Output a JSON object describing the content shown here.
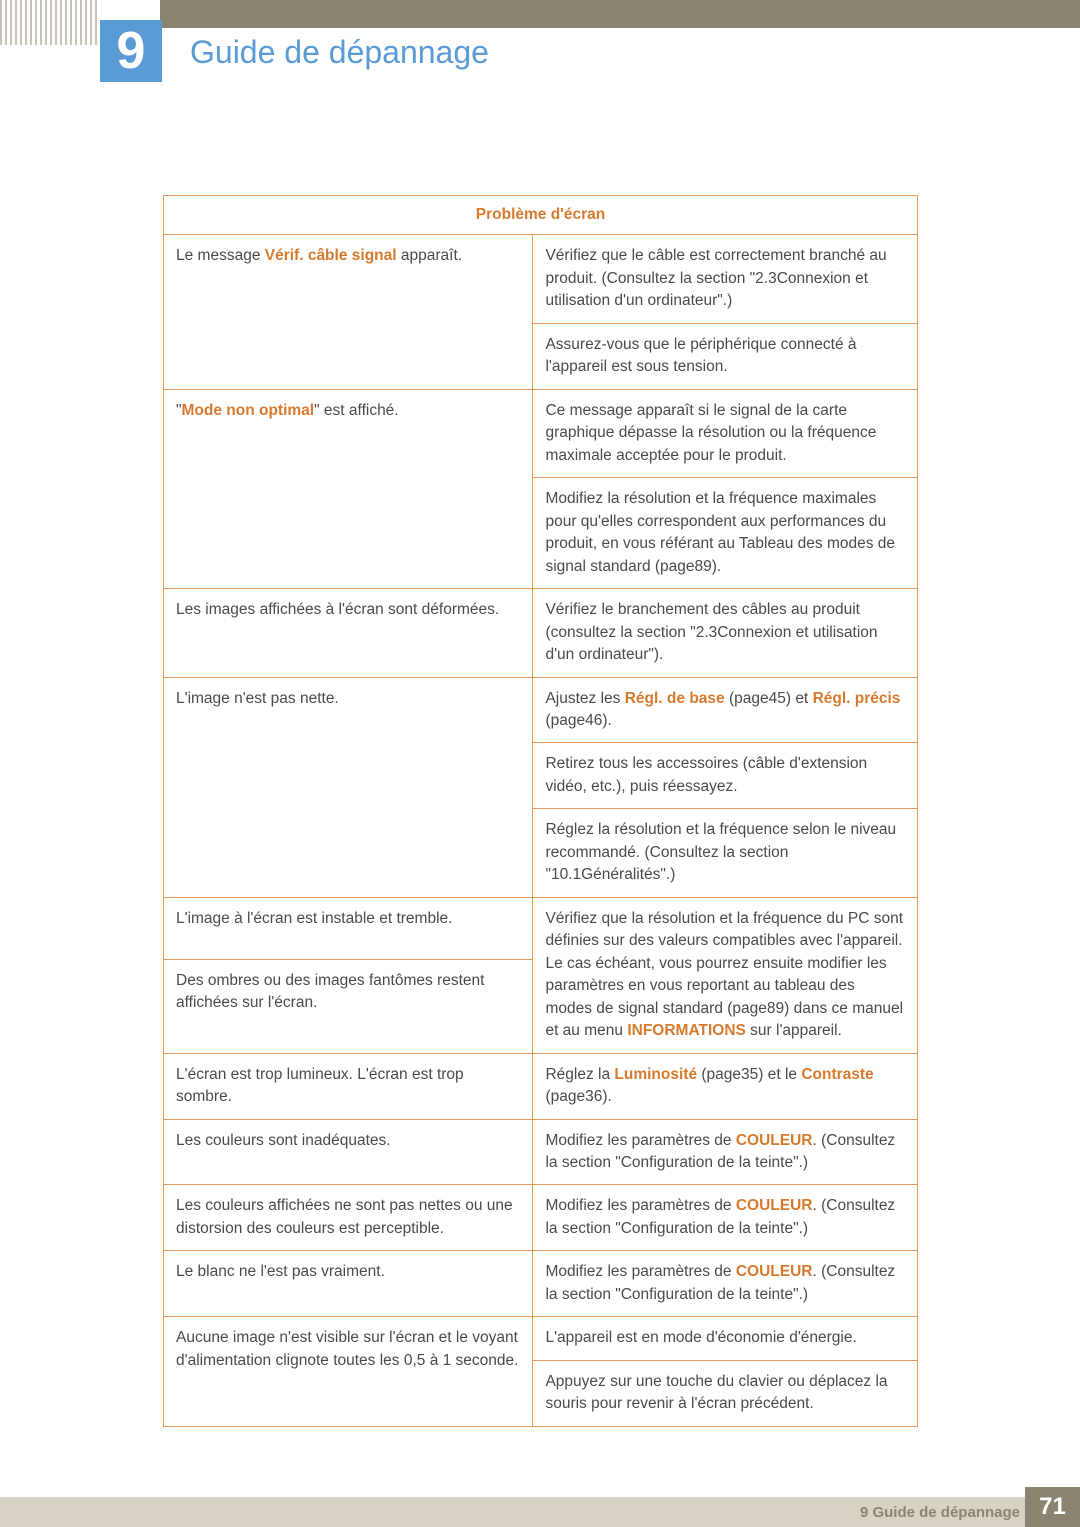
{
  "chapter": {
    "number": "9",
    "title": "Guide de dépannage"
  },
  "table": {
    "header": "Problème d'écran",
    "rows": {
      "r1_left_a": "Le message ",
      "r1_left_hl": "Vérif. câble signal",
      "r1_left_b": " apparaît.",
      "r1_right": "Vérifiez que le câble est correctement branché au produit. (Consultez la section \"2.3Connexion et utilisation d'un ordinateur\".)",
      "r2_right": "Assurez-vous que le périphérique connecté à l'appareil est sous tension.",
      "r3_left_a": "\"",
      "r3_left_hl": "Mode non optimal",
      "r3_left_b": "\" est affiché.",
      "r3_right": "Ce message apparaît si le signal de la carte graphique dépasse la résolution ou la fréquence maximale acceptée pour le produit.",
      "r4_right": "Modifiez la résolution et la fréquence maximales pour qu'elles correspondent aux performances du produit, en vous référant au Tableau des modes de signal standard (page89).",
      "r5_left": "Les images affichées à l'écran sont déformées.",
      "r5_right": "Vérifiez le branchement des câbles au produit (consultez la section \"2.3Connexion et utilisation d'un ordinateur\").",
      "r6_left": "L'image n'est pas nette.",
      "r6_right_a": "Ajustez les ",
      "r6_right_hl1": "Régl. de base",
      "r6_right_b": " (page45) et ",
      "r6_right_hl2": "Régl. précis",
      "r6_right_c": " (page46).",
      "r7_right": "Retirez tous les accessoires (câble d'extension vidéo, etc.), puis réessayez.",
      "r8_right": "Réglez la résolution et la fréquence selon le niveau recommandé. (Consultez la section \"10.1Généralités\".)",
      "r9_left": "L'image à l'écran est instable et tremble.",
      "r10_left": "Des ombres ou des images fantômes restent affichées sur l'écran.",
      "r9_right_a": "Vérifiez que la résolution et la fréquence du PC sont définies sur des valeurs compatibles avec l'appareil. Le cas échéant, vous pourrez ensuite modifier les paramètres en vous reportant au tableau des modes de signal standard (page89) dans ce manuel et au menu ",
      "r9_right_hl": "INFORMATIONS",
      "r9_right_b": " sur l'appareil.",
      "r11_left": "L'écran est trop lumineux. L'écran est trop sombre.",
      "r11_right_a": "Réglez la ",
      "r11_right_hl1": "Luminosité",
      "r11_right_b": " (page35) et le ",
      "r11_right_hl2": "Contraste",
      "r11_right_c": " (page36).",
      "r12_left": "Les couleurs sont inadéquates.",
      "r12_right_a": "Modifiez les paramètres de ",
      "r12_right_hl": "COULEUR",
      "r12_right_b": ". (Consultez la section \"Configuration de la teinte\".)",
      "r13_left": "Les couleurs affichées ne sont pas nettes ou une distorsion des couleurs est perceptible.",
      "r13_right_a": "Modifiez les paramètres de ",
      "r13_right_hl": "COULEUR",
      "r13_right_b": ". (Consultez la section \"Configuration de la teinte\".)",
      "r14_left": "Le blanc ne l'est pas vraiment.",
      "r14_right_a": "Modifiez les paramètres de ",
      "r14_right_hl": "COULEUR",
      "r14_right_b": ". (Consultez la section \"Configuration de la teinte\".)",
      "r15_left": "Aucune image n'est visible sur l'écran et le voyant d'alimentation clignote toutes les 0,5 à 1 seconde.",
      "r15_right": "L'appareil est en mode d'économie d'énergie.",
      "r16_right": "Appuyez sur une touche du clavier ou déplacez la souris pour revenir à l'écran précédent."
    }
  },
  "footer": {
    "label": "9 Guide de dépannage",
    "page": "71"
  },
  "colors": {
    "accent_blue": "#5a9bd5",
    "accent_orange": "#d67a2e",
    "border_orange": "#e59b56",
    "footer_band": "#d7d2c3",
    "footer_box": "#8a8470"
  }
}
